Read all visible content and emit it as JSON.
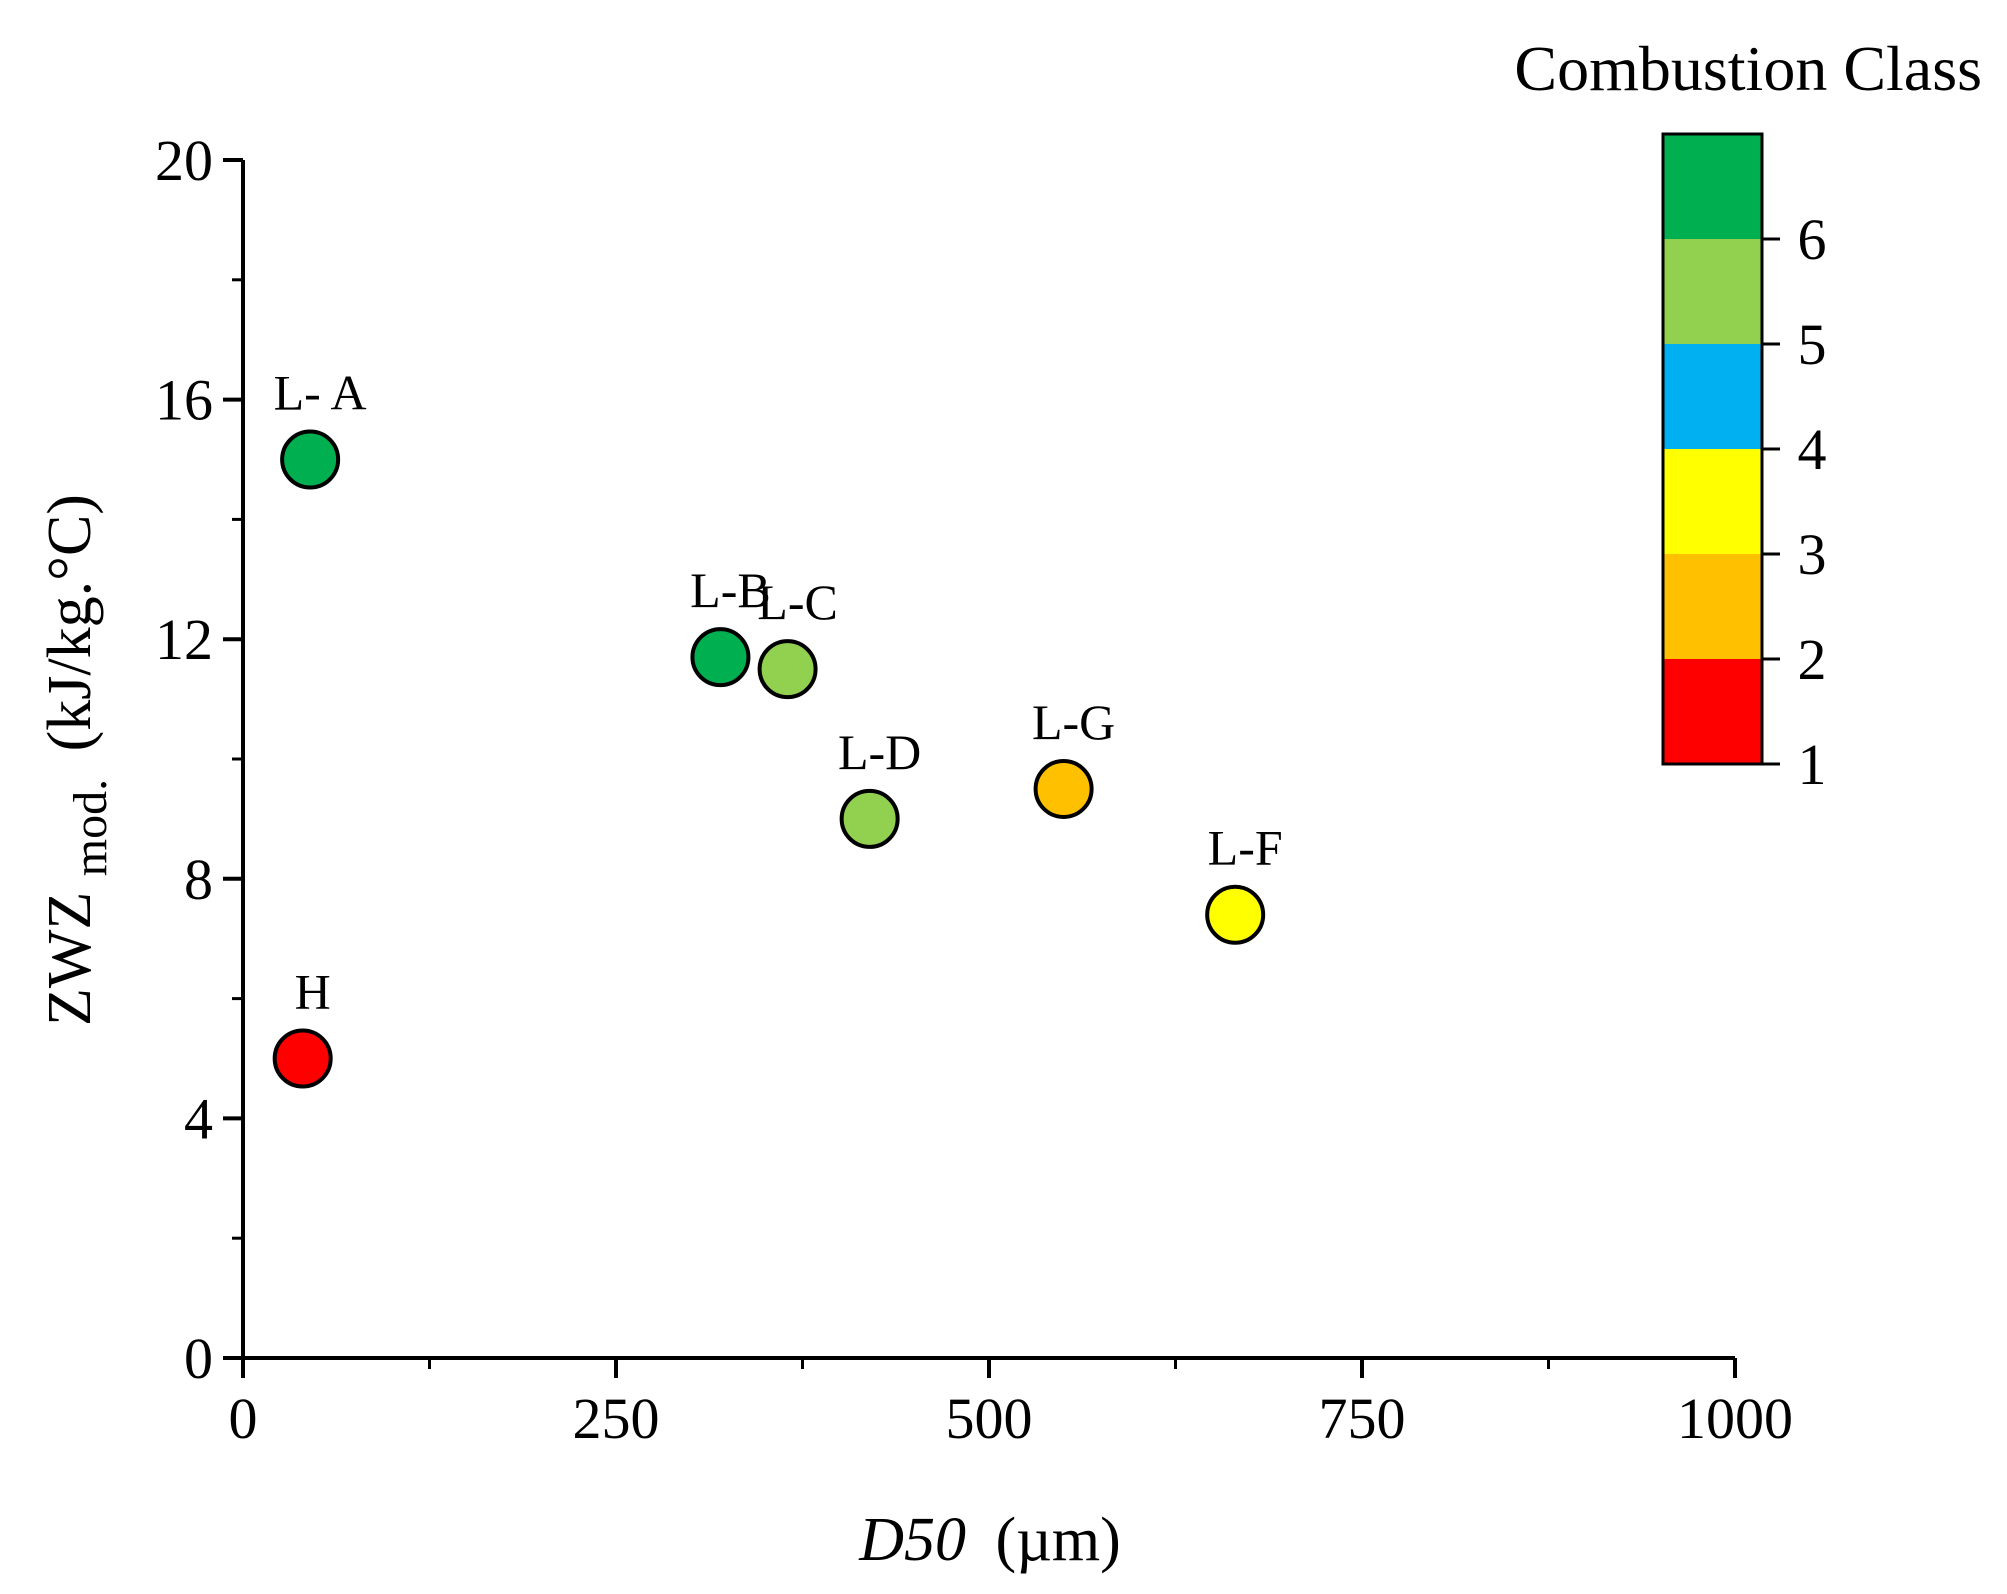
{
  "chart_data": {
    "type": "scatter",
    "xlabel_italic": "D50",
    "xlabel_unit": "(µm)",
    "ylabel_main": "ZWZ",
    "ylabel_sub": "mod.",
    "ylabel_unit": "(kJ/kg.°C)",
    "xlim": [
      0,
      1000
    ],
    "ylim": [
      0,
      20
    ],
    "x_ticks": [
      0,
      250,
      500,
      750,
      1000
    ],
    "y_ticks": [
      0,
      4,
      8,
      12,
      16,
      20
    ],
    "grid": false,
    "legend": {
      "title": "Combustion Class",
      "placement": "top-right colorbar",
      "range": [
        1,
        7
      ],
      "ticks": [
        1,
        2,
        3,
        4,
        5,
        6
      ],
      "bands": [
        {
          "from": 1,
          "to": 2,
          "color": "#ff0000"
        },
        {
          "from": 2,
          "to": 3,
          "color": "#ffc000"
        },
        {
          "from": 3,
          "to": 4,
          "color": "#ffff00"
        },
        {
          "from": 4,
          "to": 5,
          "color": "#00b0f0"
        },
        {
          "from": 5,
          "to": 6,
          "color": "#92d050"
        },
        {
          "from": 6,
          "to": 7,
          "color": "#00b050"
        }
      ]
    },
    "points": [
      {
        "label": "L- A",
        "x": 45,
        "y": 15.0,
        "class": 6,
        "color": "#00b050"
      },
      {
        "label": "L-B",
        "x": 320,
        "y": 11.7,
        "class": 6,
        "color": "#00b050"
      },
      {
        "label": "L-C",
        "x": 365,
        "y": 11.5,
        "class": 5,
        "color": "#92d050"
      },
      {
        "label": "L-D",
        "x": 420,
        "y": 9.0,
        "class": 5,
        "color": "#92d050"
      },
      {
        "label": "L-G",
        "x": 550,
        "y": 9.5,
        "class": 2,
        "color": "#ffc000"
      },
      {
        "label": "L-F",
        "x": 665,
        "y": 7.4,
        "class": 3,
        "color": "#ffff00"
      },
      {
        "label": "H",
        "x": 40,
        "y": 5.0,
        "class": 1,
        "color": "#ff0000"
      }
    ]
  }
}
